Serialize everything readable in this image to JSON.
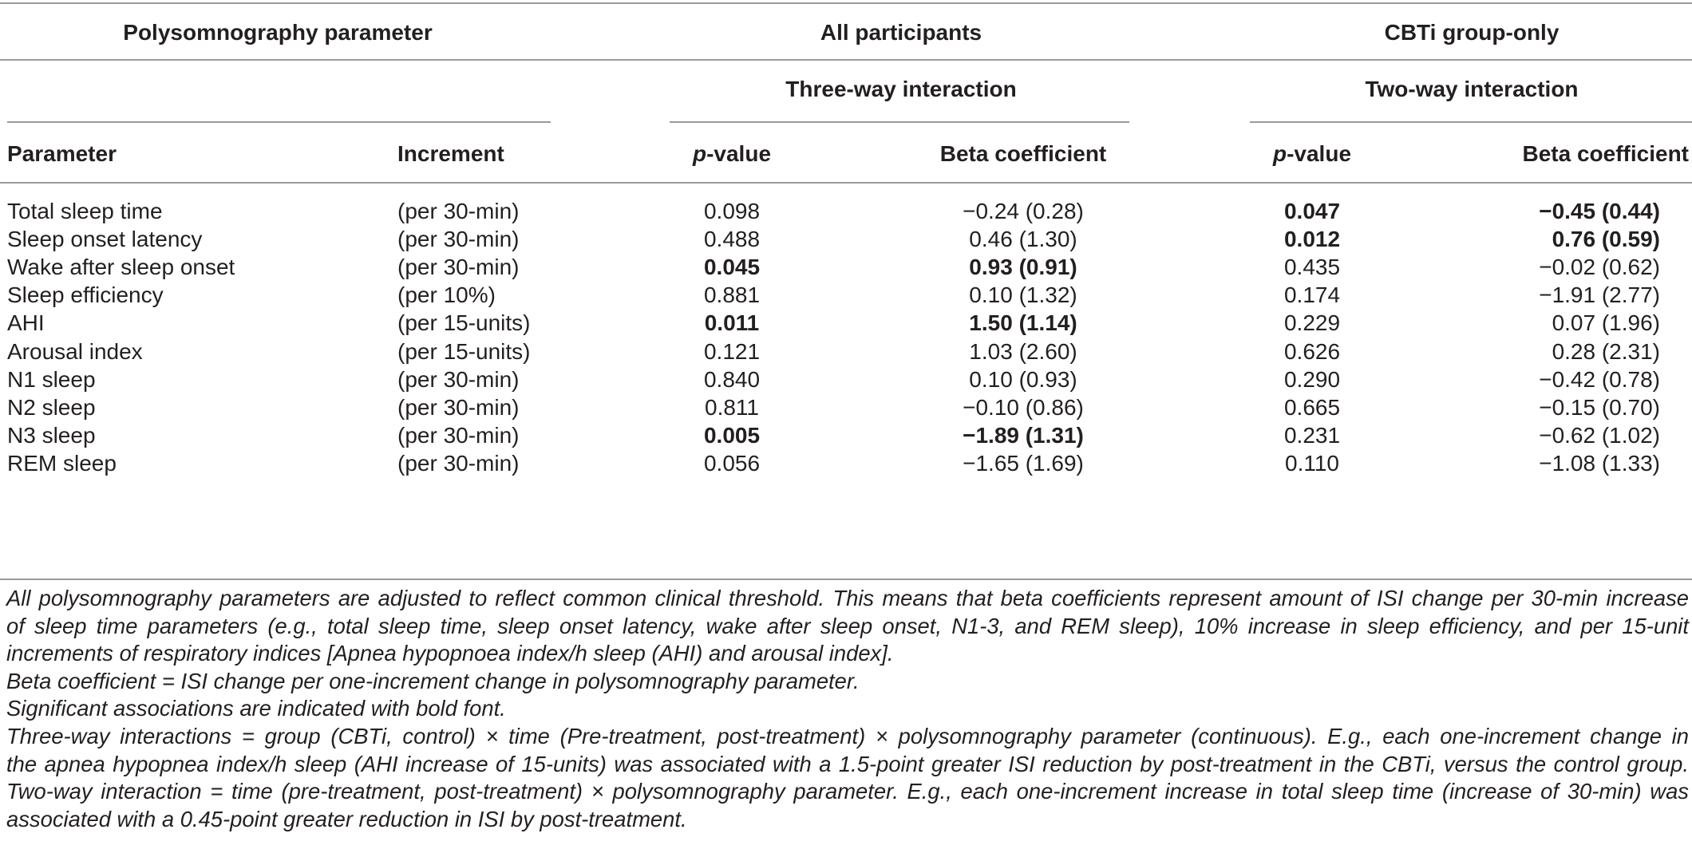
{
  "header": {
    "col_group_param": "Polysomnography parameter",
    "col_group_all": "All participants",
    "col_group_cbti": "CBTi group-only",
    "sub_all": "Three-way interaction",
    "sub_cbti": "Two-way interaction",
    "col_parameter": "Parameter",
    "col_increment": "Increment",
    "pvalue_p": "p",
    "pvalue_rest": "-value",
    "col_beta": "Beta coefficient"
  },
  "rows": [
    {
      "parameter": "Total sleep time",
      "increment": "(per 30-min)",
      "all_p": "0.098",
      "all_beta": "−0.24 (0.28)",
      "all_bold": false,
      "cbti_p": "0.047",
      "cbti_beta": "−0.45 (0.44)",
      "cbti_bold": true
    },
    {
      "parameter": "Sleep onset latency",
      "increment": "(per 30-min)",
      "all_p": "0.488",
      "all_beta": "0.46 (1.30)",
      "all_bold": false,
      "cbti_p": "0.012",
      "cbti_beta": "0.76 (0.59)",
      "cbti_bold": true
    },
    {
      "parameter": "Wake after sleep onset",
      "increment": "(per 30-min)",
      "all_p": "0.045",
      "all_beta": "0.93 (0.91)",
      "all_bold": true,
      "cbti_p": "0.435",
      "cbti_beta": "−0.02 (0.62)",
      "cbti_bold": false
    },
    {
      "parameter": "Sleep efficiency",
      "increment": "(per 10%)",
      "all_p": "0.881",
      "all_beta": "0.10 (1.32)",
      "all_bold": false,
      "cbti_p": "0.174",
      "cbti_beta": "−1.91 (2.77)",
      "cbti_bold": false
    },
    {
      "parameter": "AHI",
      "increment": "(per 15-units)",
      "all_p": "0.011",
      "all_beta": "1.50 (1.14)",
      "all_bold": true,
      "cbti_p": "0.229",
      "cbti_beta": "0.07 (1.96)",
      "cbti_bold": false
    },
    {
      "parameter": "Arousal index",
      "increment": "(per 15-units)",
      "all_p": "0.121",
      "all_beta": "1.03 (2.60)",
      "all_bold": false,
      "cbti_p": "0.626",
      "cbti_beta": "0.28 (2.31)",
      "cbti_bold": false
    },
    {
      "parameter": "N1 sleep",
      "increment": "(per 30-min)",
      "all_p": "0.840",
      "all_beta": "0.10 (0.93)",
      "all_bold": false,
      "cbti_p": "0.290",
      "cbti_beta": "−0.42 (0.78)",
      "cbti_bold": false
    },
    {
      "parameter": "N2 sleep",
      "increment": "(per 30-min)",
      "all_p": "0.811",
      "all_beta": "−0.10 (0.86)",
      "all_bold": false,
      "cbti_p": "0.665",
      "cbti_beta": "−0.15 (0.70)",
      "cbti_bold": false
    },
    {
      "parameter": "N3 sleep",
      "increment": "(per 30-min)",
      "all_p": "0.005",
      "all_beta": "−1.89 (1.31)",
      "all_bold": true,
      "cbti_p": "0.231",
      "cbti_beta": "−0.62 (1.02)",
      "cbti_bold": false
    },
    {
      "parameter": "REM sleep",
      "increment": "(per 30-min)",
      "all_p": "0.056",
      "all_beta": "−1.65 (1.69)",
      "all_bold": false,
      "cbti_p": "0.110",
      "cbti_beta": "−1.08 (1.33)",
      "cbti_bold": false
    }
  ],
  "notes": [
    "All polysomnography parameters are adjusted to reflect common clinical threshold. This means that beta coefficients represent amount of ISI change per 30-min increase",
    "of sleep time parameters (e.g., total sleep time, sleep onset latency, wake after sleep onset, N1-3, and REM sleep), 10% increase in sleep efficiency, and per 15-unit",
    "increments of respiratory indices [Apnea hypopnoea index/h sleep (AHI) and arousal index].",
    "Beta coefficient = ISI change per one-increment change in polysomnography parameter.",
    "Significant associations are indicated with bold font.",
    "Three-way interactions = group (CBTi, control) × time (Pre-treatment, post-treatment) × polysomnography parameter (continuous). E.g., each one-increment change in",
    "the apnea hypopnea index/h sleep (AHI increase of 15-units) was associated with a 1.5-point greater ISI reduction by post-treatment in the CBTi, versus the control group.",
    "Two-way interaction = time (pre-treatment, post-treatment) × polysomnography parameter. E.g., each one-increment increase in total sleep time (increase of 30-min) was",
    "associated with a 0.45-point greater reduction in ISI by post-treatment."
  ],
  "colors": {
    "text": "#231f20",
    "rule": "#9a9a9a"
  }
}
